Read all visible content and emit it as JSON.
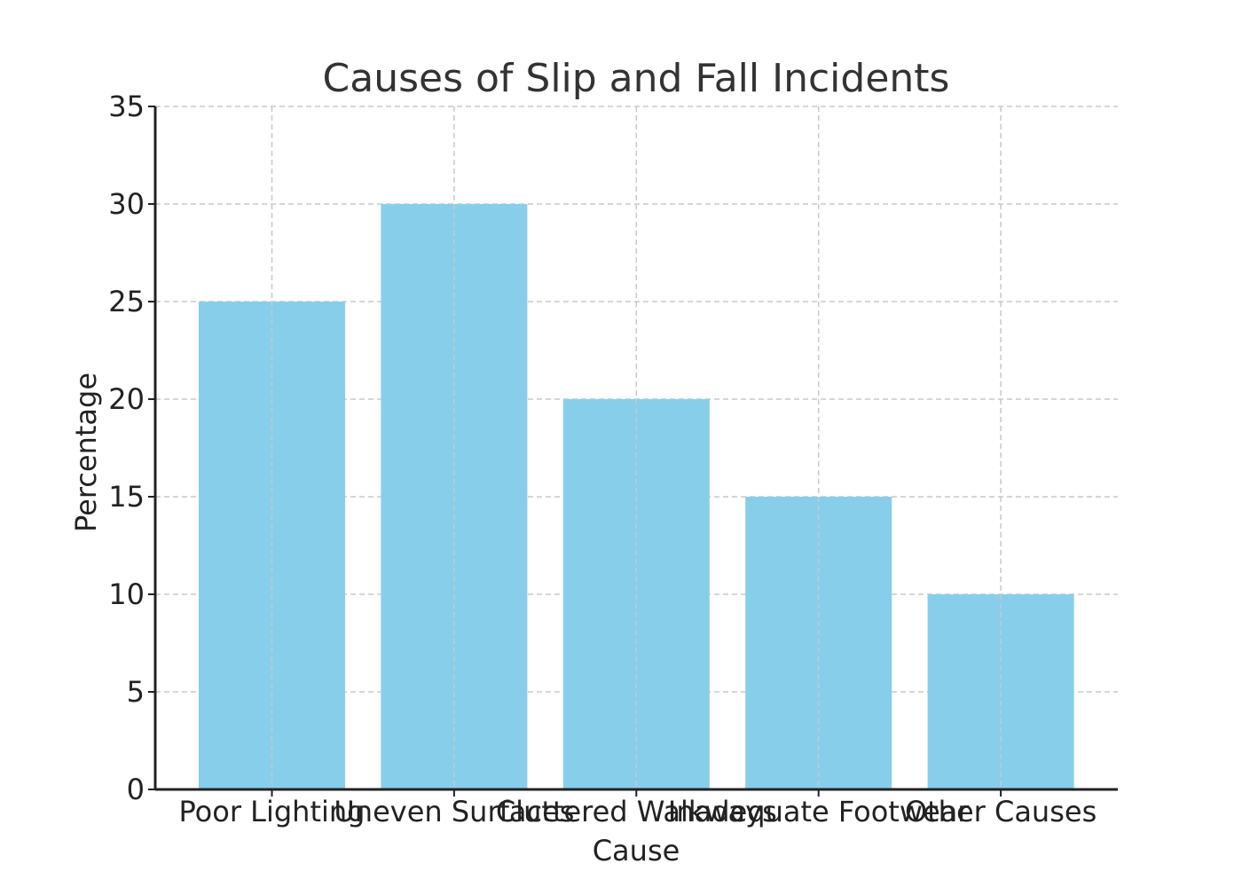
{
  "chart_data": {
    "type": "bar",
    "title": "Causes of Slip and Fall Incidents",
    "xlabel": "Cause",
    "ylabel": "Percentage",
    "categories": [
      "Poor Lighting",
      "Uneven Surfaces",
      "Cluttered Walkways",
      "Inadequate Footwear",
      "Other Causes"
    ],
    "values": [
      25,
      30,
      20,
      15,
      10
    ],
    "ylim": [
      0,
      35
    ],
    "yticks": [
      0,
      5,
      10,
      15,
      20,
      25,
      30,
      35
    ],
    "grid": true,
    "legend": null,
    "bar_color": "#87CEEB"
  }
}
